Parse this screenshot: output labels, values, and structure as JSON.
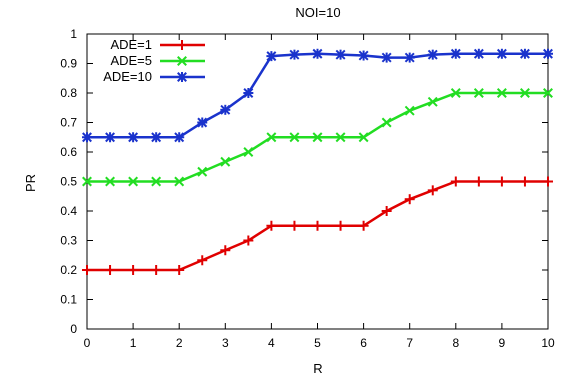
{
  "chart_data": {
    "type": "line",
    "title": "NOI=10",
    "xlabel": "R",
    "ylabel": "PR",
    "xlim": [
      0,
      10
    ],
    "ylim": [
      0,
      1
    ],
    "xticks": [
      "0",
      "1",
      "2",
      "3",
      "4",
      "5",
      "6",
      "7",
      "8",
      "9",
      "10"
    ],
    "yticks": [
      "0",
      "0.1",
      "0.2",
      "0.3",
      "0.4",
      "0.5",
      "0.6",
      "0.7",
      "0.8",
      "0.9",
      "1"
    ],
    "grid": false,
    "legend_position": "top-left",
    "x": [
      0,
      0.5,
      1,
      1.5,
      2,
      2.5,
      3,
      3.5,
      4,
      4.5,
      5,
      5.5,
      6,
      6.5,
      7,
      7.5,
      8,
      8.5,
      9,
      9.5,
      10
    ],
    "series": [
      {
        "name": "ADE=1",
        "color": "#e00000",
        "marker": "plus",
        "values": [
          0.2,
          0.2,
          0.2,
          0.2,
          0.2,
          0.233,
          0.267,
          0.3,
          0.35,
          0.35,
          0.35,
          0.35,
          0.35,
          0.4,
          0.44,
          0.47,
          0.5,
          0.5,
          0.5,
          0.5,
          0.5
        ]
      },
      {
        "name": "ADE=5",
        "color": "#22dd22",
        "marker": "cross",
        "values": [
          0.5,
          0.5,
          0.5,
          0.5,
          0.5,
          0.533,
          0.567,
          0.6,
          0.65,
          0.65,
          0.65,
          0.65,
          0.65,
          0.7,
          0.74,
          0.77,
          0.8,
          0.8,
          0.8,
          0.8,
          0.8
        ]
      },
      {
        "name": "ADE=10",
        "color": "#1a33cc",
        "marker": "asterisk",
        "values": [
          0.65,
          0.65,
          0.65,
          0.65,
          0.65,
          0.7,
          0.743,
          0.8,
          0.925,
          0.93,
          0.933,
          0.93,
          0.927,
          0.92,
          0.92,
          0.93,
          0.933,
          0.933,
          0.933,
          0.933,
          0.933
        ]
      }
    ]
  }
}
